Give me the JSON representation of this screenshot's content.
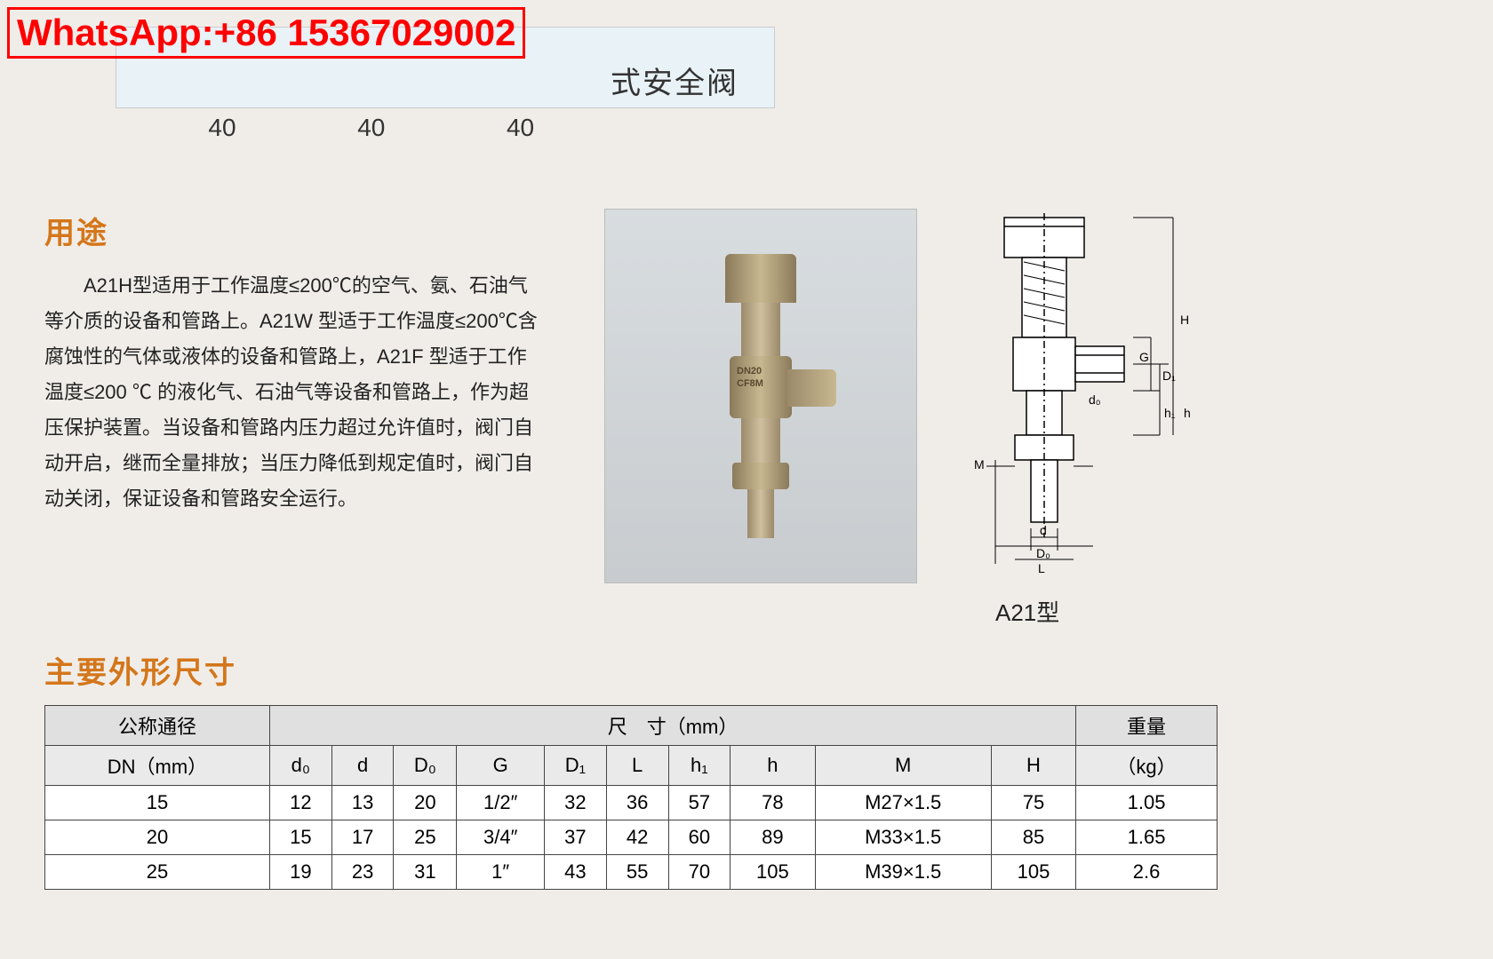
{
  "watermark": "WhatsApp:+86 15367029002",
  "title_suffix": "式安全阀",
  "top_numbers": [
    "40",
    "40",
    "40"
  ],
  "usage": {
    "heading": "用途",
    "body": "A21H型适用于工作温度≤200℃的空气、氨、石油气等介质的设备和管路上。A21W 型适于工作温度≤200℃含腐蚀性的气体或液体的设备和管路上，A21F 型适于工作温度≤200 ℃ 的液化气、石油气等设备和管路上，作为超压保护装置。当设备和管路内压力超过允许值时，阀门自动开启，继而全量排放；当压力降低到规定值时，阀门自动关闭，保证设备和管路安全运行。"
  },
  "product_marks": {
    "line1": "DN20",
    "line2": "CF8M"
  },
  "model_label": "A21型",
  "dim_heading": "主要外形尺寸",
  "table": {
    "group_header": "尺　寸（mm）",
    "col_dn_top": "公称通径",
    "col_dn_bot": "DN（mm）",
    "col_weight_top": "重量",
    "col_weight_bot": "（kg）",
    "cols": [
      "d₀",
      "d",
      "D₀",
      "G",
      "D₁",
      "L",
      "h₁",
      "h",
      "M",
      "H"
    ],
    "rows": [
      [
        "15",
        "12",
        "13",
        "20",
        "1/2″",
        "32",
        "36",
        "57",
        "78",
        "M27×1.5",
        "75",
        "1.05"
      ],
      [
        "20",
        "15",
        "17",
        "25",
        "3/4″",
        "37",
        "42",
        "60",
        "89",
        "M33×1.5",
        "85",
        "1.65"
      ],
      [
        "25",
        "19",
        "23",
        "31",
        "1″",
        "43",
        "55",
        "70",
        "105",
        "M39×1.5",
        "105",
        "2.6"
      ]
    ]
  },
  "diagram_dims": [
    "H",
    "G",
    "D₁",
    "d₀",
    "h₁",
    "h",
    "M",
    "d",
    "D₀",
    "L"
  ],
  "colors": {
    "accent": "#d4761a",
    "watermark": "#ff0000",
    "page_bg": "#f0ede9",
    "title_bg": "#e8f2f7"
  }
}
